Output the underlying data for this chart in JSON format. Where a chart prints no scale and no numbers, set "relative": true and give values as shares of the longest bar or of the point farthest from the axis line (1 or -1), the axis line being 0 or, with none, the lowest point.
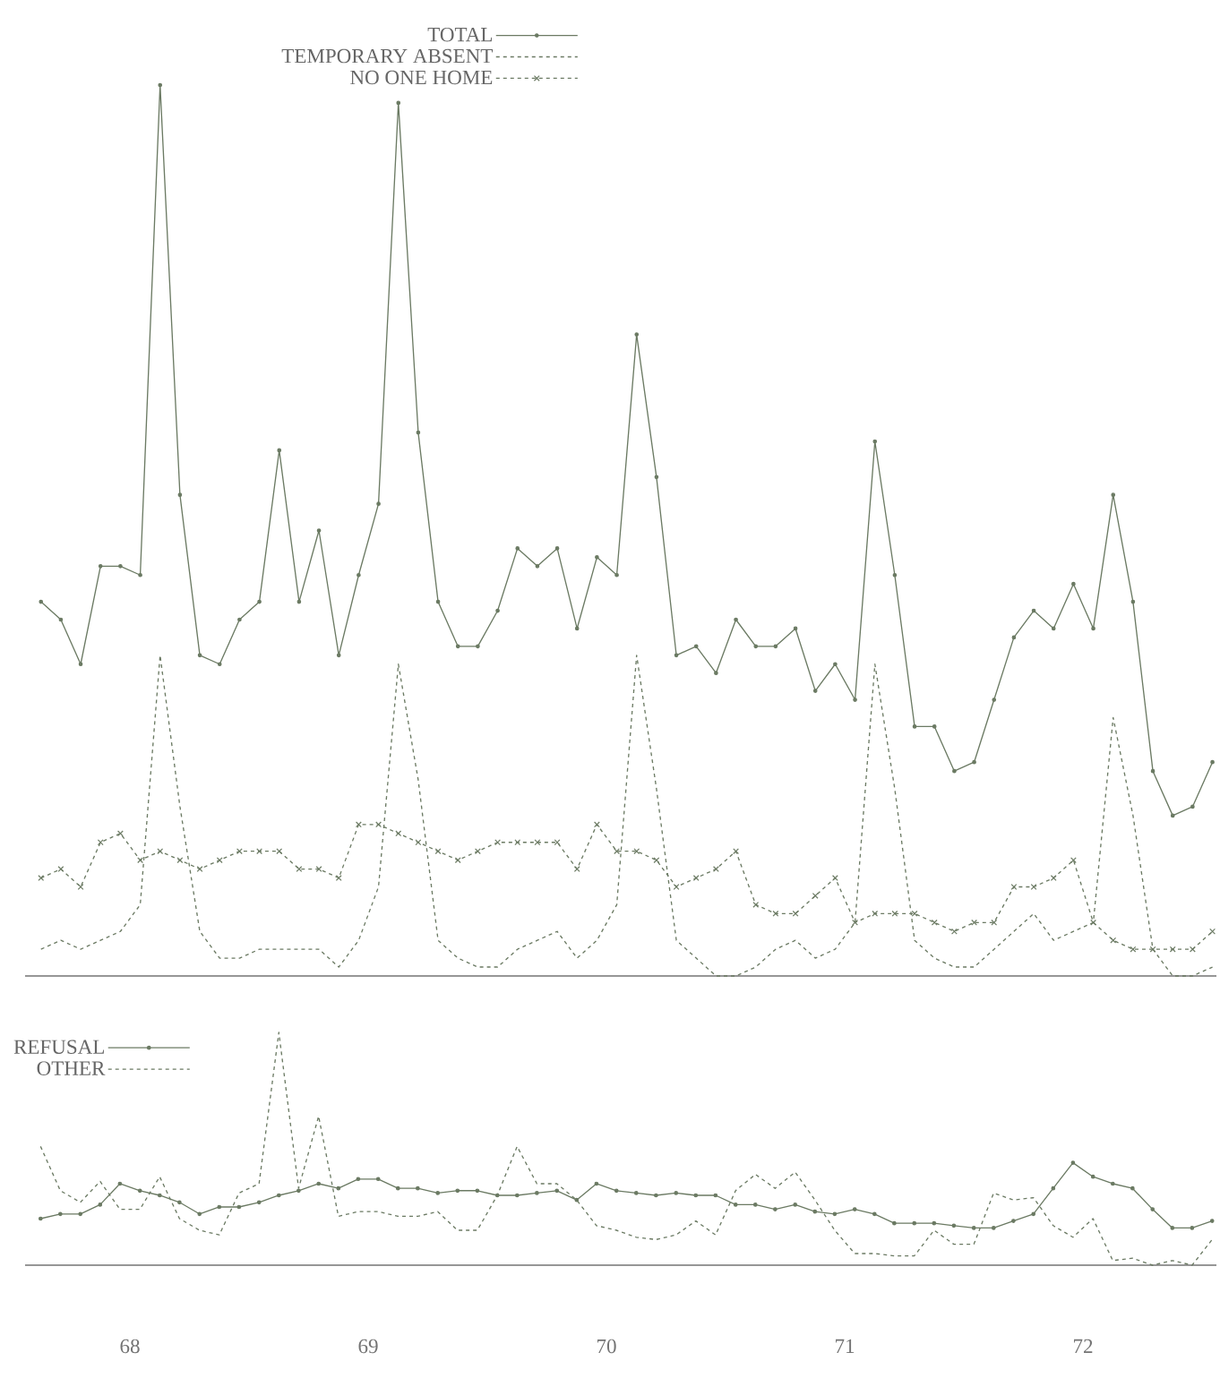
{
  "chart_data": [
    {
      "type": "line",
      "relative": true,
      "legend": "top",
      "categories": [
        null,
        null,
        null,
        null,
        null,
        null,
        null,
        null,
        null,
        null,
        null,
        null,
        null,
        null,
        null,
        null,
        null,
        null,
        null,
        null,
        null,
        null,
        null,
        null,
        null,
        null,
        null,
        null,
        null,
        null,
        null,
        null,
        null,
        null,
        null,
        null,
        null,
        null,
        null,
        null,
        null,
        null,
        null,
        null,
        null,
        null,
        null,
        null,
        null,
        null,
        null,
        null,
        null,
        null,
        null,
        null,
        null,
        null,
        null,
        null
      ],
      "series": [
        {
          "name": "TOTAL",
          "color": "#6b7a63",
          "line_style": "solid",
          "marker": "circle",
          "values": [
            0.42,
            0.4,
            0.35,
            0.46,
            0.46,
            0.45,
            1.0,
            0.54,
            0.36,
            0.35,
            0.4,
            0.42,
            0.59,
            0.42,
            0.5,
            0.36,
            0.45,
            0.53,
            0.98,
            0.61,
            0.42,
            0.37,
            0.37,
            0.41,
            0.48,
            0.46,
            0.48,
            0.39,
            0.47,
            0.45,
            0.72,
            0.56,
            0.36,
            0.37,
            0.34,
            0.4,
            0.37,
            0.37,
            0.39,
            0.32,
            0.35,
            0.31,
            0.6,
            0.45,
            0.28,
            0.28,
            0.23,
            0.24,
            0.31,
            0.38,
            0.41,
            0.39,
            0.44,
            0.39,
            0.54,
            0.42,
            0.23,
            0.18,
            0.19,
            0.24
          ]
        },
        {
          "name": "TEMPORARY ABSENT",
          "color": "#6b7a63",
          "line_style": "dashed",
          "marker": "none",
          "values": [
            0.03,
            0.04,
            0.03,
            0.04,
            0.05,
            0.08,
            0.36,
            0.19,
            0.05,
            0.02,
            0.02,
            0.03,
            0.03,
            0.03,
            0.03,
            0.01,
            0.04,
            0.1,
            0.35,
            0.22,
            0.04,
            0.02,
            0.01,
            0.01,
            0.03,
            0.04,
            0.05,
            0.02,
            0.04,
            0.08,
            0.36,
            0.21,
            0.04,
            0.02,
            0.0,
            0.0,
            0.01,
            0.03,
            0.04,
            0.02,
            0.03,
            0.06,
            0.35,
            0.21,
            0.04,
            0.02,
            0.01,
            0.01,
            0.03,
            0.05,
            0.07,
            0.04,
            0.05,
            0.06,
            0.29,
            0.18,
            0.03,
            0.0,
            0.0,
            0.01
          ]
        },
        {
          "name": "NO ONE HOME",
          "color": "#6b7a63",
          "line_style": "dashed",
          "marker": "cross",
          "values": [
            0.11,
            0.12,
            0.1,
            0.15,
            0.16,
            0.13,
            0.14,
            0.13,
            0.12,
            0.13,
            0.14,
            0.14,
            0.14,
            0.12,
            0.12,
            0.11,
            0.17,
            0.17,
            0.16,
            0.15,
            0.14,
            0.13,
            0.14,
            0.15,
            0.15,
            0.15,
            0.15,
            0.12,
            0.17,
            0.14,
            0.14,
            0.13,
            0.1,
            0.11,
            0.12,
            0.14,
            0.08,
            0.07,
            0.07,
            0.09,
            0.11,
            0.06,
            0.07,
            0.07,
            0.07,
            0.06,
            0.05,
            0.06,
            0.06,
            0.1,
            0.1,
            0.11,
            0.13,
            0.06,
            0.04,
            0.03,
            0.03,
            0.03,
            0.03,
            0.05
          ]
        }
      ]
    },
    {
      "type": "line",
      "relative": true,
      "tick_labels": "x",
      "legend": "top left",
      "xlim": [
        67.56,
        72.56
      ],
      "xticks": [
        68,
        69,
        70,
        71,
        72
      ],
      "x": [
        67.625,
        67.708,
        67.792,
        67.875,
        67.958,
        68.042,
        68.125,
        68.208,
        68.292,
        68.375,
        68.458,
        68.542,
        68.625,
        68.708,
        68.792,
        68.875,
        68.958,
        69.042,
        69.125,
        69.208,
        69.292,
        69.375,
        69.458,
        69.542,
        69.625,
        69.708,
        69.792,
        69.875,
        69.958,
        70.042,
        70.125,
        70.208,
        70.292,
        70.375,
        70.458,
        70.542,
        70.625,
        70.708,
        70.792,
        70.875,
        70.958,
        71.042,
        71.125,
        71.208,
        71.292,
        71.375,
        71.458,
        71.542,
        71.625,
        71.708,
        71.792,
        71.875,
        71.958,
        72.042,
        72.125,
        72.208,
        72.292,
        72.375,
        72.458,
        72.542
      ],
      "series": [
        {
          "name": "REFUSAL",
          "color": "#6b7a63",
          "line_style": "solid",
          "marker": "circle",
          "values": [
            0.2,
            0.22,
            0.22,
            0.26,
            0.35,
            0.32,
            0.3,
            0.27,
            0.22,
            0.25,
            0.25,
            0.27,
            0.3,
            0.32,
            0.35,
            0.33,
            0.37,
            0.37,
            0.33,
            0.33,
            0.31,
            0.32,
            0.32,
            0.3,
            0.3,
            0.31,
            0.32,
            0.28,
            0.35,
            0.32,
            0.31,
            0.3,
            0.31,
            0.3,
            0.3,
            0.26,
            0.26,
            0.24,
            0.26,
            0.23,
            0.22,
            0.24,
            0.22,
            0.18,
            0.18,
            0.18,
            0.17,
            0.16,
            0.16,
            0.19,
            0.22,
            0.33,
            0.44,
            0.38,
            0.35,
            0.33,
            0.24,
            0.16,
            0.16,
            0.19
          ]
        },
        {
          "name": "OTHER",
          "color": "#6b7a63",
          "line_style": "dashed",
          "marker": "none",
          "values": [
            0.51,
            0.32,
            0.27,
            0.36,
            0.24,
            0.24,
            0.38,
            0.2,
            0.15,
            0.13,
            0.31,
            0.35,
            1.0,
            0.33,
            0.64,
            0.21,
            0.23,
            0.23,
            0.21,
            0.21,
            0.23,
            0.15,
            0.15,
            0.3,
            0.51,
            0.35,
            0.35,
            0.28,
            0.17,
            0.15,
            0.12,
            0.11,
            0.13,
            0.19,
            0.13,
            0.32,
            0.39,
            0.33,
            0.4,
            0.28,
            0.15,
            0.05,
            0.05,
            0.04,
            0.04,
            0.15,
            0.09,
            0.09,
            0.31,
            0.28,
            0.29,
            0.17,
            0.12,
            0.2,
            0.02,
            0.03,
            0.0,
            0.02,
            0.0,
            0.11
          ]
        }
      ]
    }
  ]
}
